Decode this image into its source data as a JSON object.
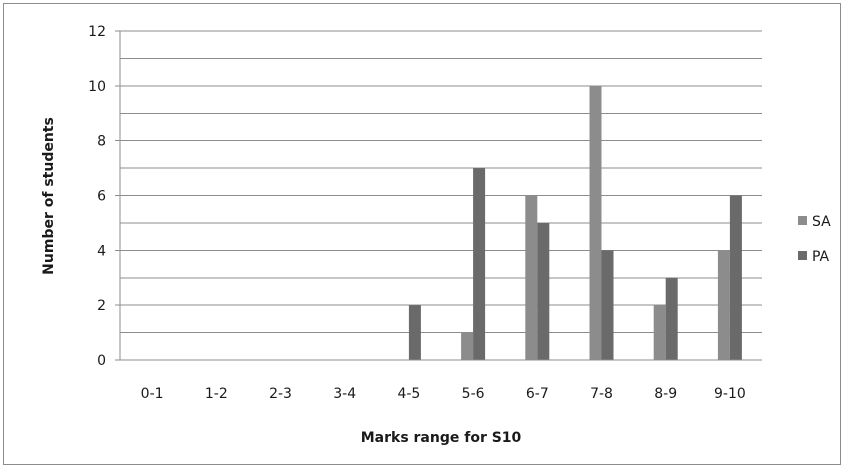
{
  "chart_data": {
    "type": "bar",
    "categories": [
      "0-1",
      "1-2",
      "2-3",
      "3-4",
      "4-5",
      "5-6",
      "6-7",
      "7-8",
      "8-9",
      "9-10"
    ],
    "series": [
      {
        "name": "SA",
        "color": "#8c8c8c",
        "values": [
          0,
          0,
          0,
          0,
          0,
          1,
          6,
          10,
          2,
          4
        ]
      },
      {
        "name": "PA",
        "color": "#6a6a6a",
        "values": [
          0,
          0,
          0,
          0,
          2,
          7,
          5,
          4,
          3,
          6
        ]
      }
    ],
    "title": "",
    "xlabel": "Marks range for S10",
    "ylabel": "Number of students",
    "ylim": [
      0,
      12
    ],
    "yticks": [
      0,
      2,
      4,
      6,
      8,
      10,
      12
    ],
    "grid": true,
    "legend_position": "right"
  }
}
